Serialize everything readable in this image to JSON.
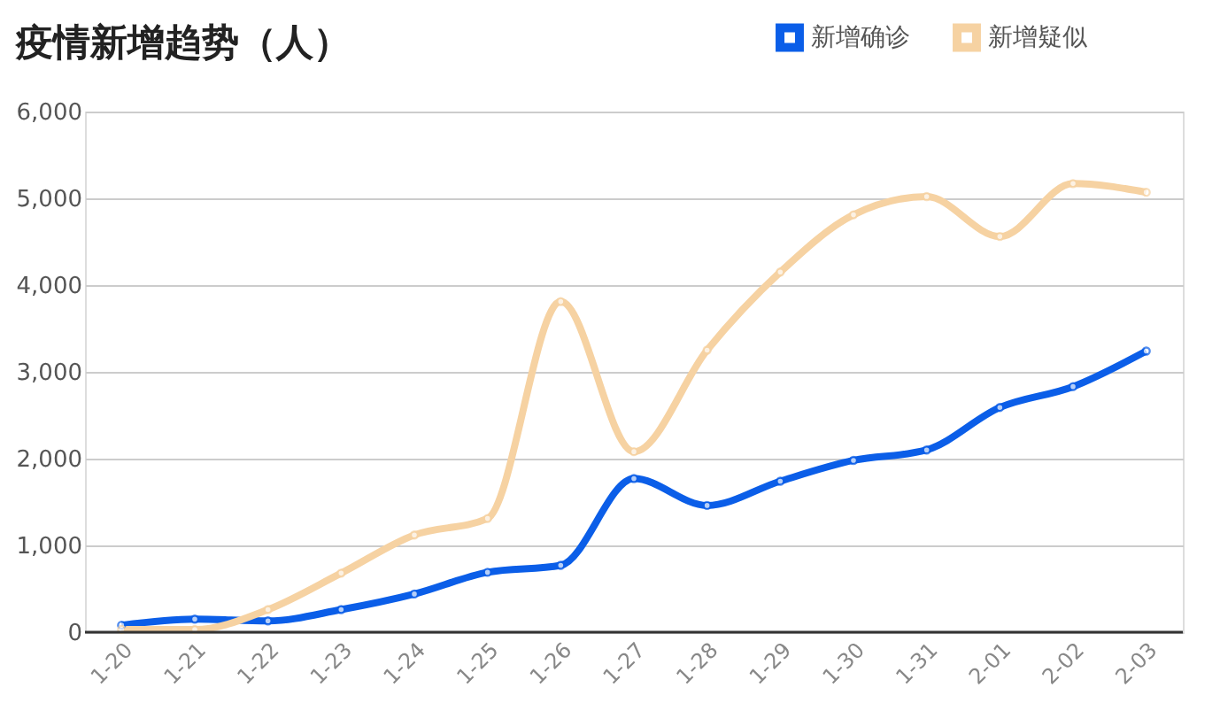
{
  "chart_data": {
    "type": "line",
    "title": "疫情新增趋势（人）",
    "categories": [
      "1-20",
      "1-21",
      "1-22",
      "1-23",
      "1-24",
      "1-25",
      "1-26",
      "1-27",
      "1-28",
      "1-29",
      "1-30",
      "1-31",
      "2-01",
      "2-02",
      "2-03"
    ],
    "series": [
      {
        "name": "新增确诊",
        "color": "#0b5ee8",
        "values": [
          80,
          150,
          130,
          260,
          440,
          690,
          770,
          1770,
          1460,
          1740,
          1980,
          2100,
          2590,
          2830,
          3240
        ]
      },
      {
        "name": "新增疑似",
        "color": "#f6d2a2",
        "values": [
          30,
          30,
          260,
          680,
          1120,
          1310,
          3810,
          2080,
          3250,
          4150,
          4810,
          5020,
          4560,
          5170,
          5070
        ]
      }
    ],
    "ylim": [
      0,
      6000
    ],
    "yticks": [
      0,
      {
        "value": 1000,
        "label": "1,000"
      },
      {
        "value": 2000,
        "label": "2,000"
      },
      {
        "value": 3000,
        "label": "3,000"
      },
      {
        "value": 4000,
        "label": "4,000"
      },
      {
        "value": 5000,
        "label": "5,000"
      },
      {
        "value": 6000,
        "label": "6,000"
      }
    ],
    "grid": "y",
    "legend": "top right",
    "marker": "circle",
    "line_style": "solid"
  }
}
